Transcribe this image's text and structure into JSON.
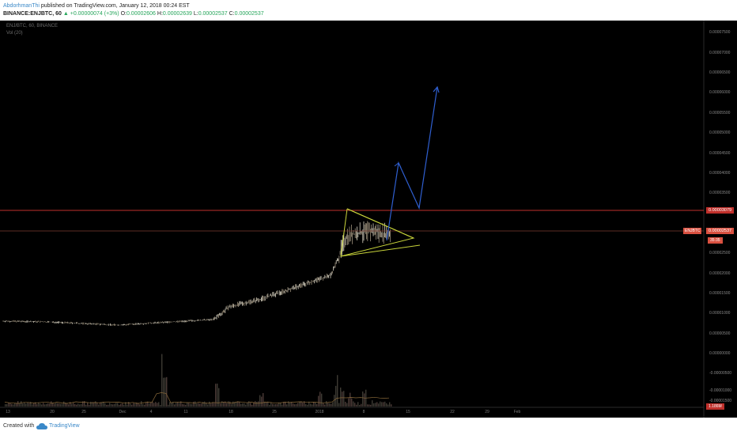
{
  "header": {
    "author": "AbdorhmanThi",
    "published": "published on TradingView.com, January 12, 2018 00:24 EST",
    "symbol_line": "BINANCE:ENJBTC, 60",
    "change": "▲ +0.00000074 (+3%)",
    "ohlc": {
      "o_label": "O:",
      "o": "0.00002606",
      "h_label": "H:",
      "h": "0.00002639",
      "l_label": "L:",
      "l": "0.00002537",
      "c_label": "C:",
      "c": "0.00002537"
    }
  },
  "chart": {
    "symbol_label": "ENJ/BTC, 60, BINANCE",
    "volume_label": "Vol (20)",
    "y_ticks": [
      "0.00007500",
      "0.00007000",
      "0.00006500",
      "0.00006000",
      "0.00005500",
      "0.00005000",
      "0.00004500",
      "0.00004000",
      "0.00003500",
      "0.00002500",
      "0.00002000",
      "0.00001500",
      "0.00001000",
      "0.00000500",
      "0.00000000",
      "-0.00000500",
      "-0.00001000",
      "-0.00001500"
    ],
    "x_ticks": [
      "13",
      "20",
      "25",
      "Dec",
      "4",
      "11",
      "18",
      "25",
      "2018",
      "8",
      "15",
      "22",
      "29",
      "Feb"
    ],
    "resistance_label": "0.00003079",
    "last_price_label": "0.00002537",
    "symbol_tag": "ENJBTC",
    "countdown": "35:35",
    "volume_value": "1.186M",
    "colors": {
      "background": "#000000",
      "resistance_line": "#c0302b",
      "triangle": "#c8d43a",
      "projection": "#2f5fd0",
      "candles": "#c9c3b3"
    }
  },
  "footer": {
    "created_with": "Created with",
    "brand": "TradingView"
  }
}
